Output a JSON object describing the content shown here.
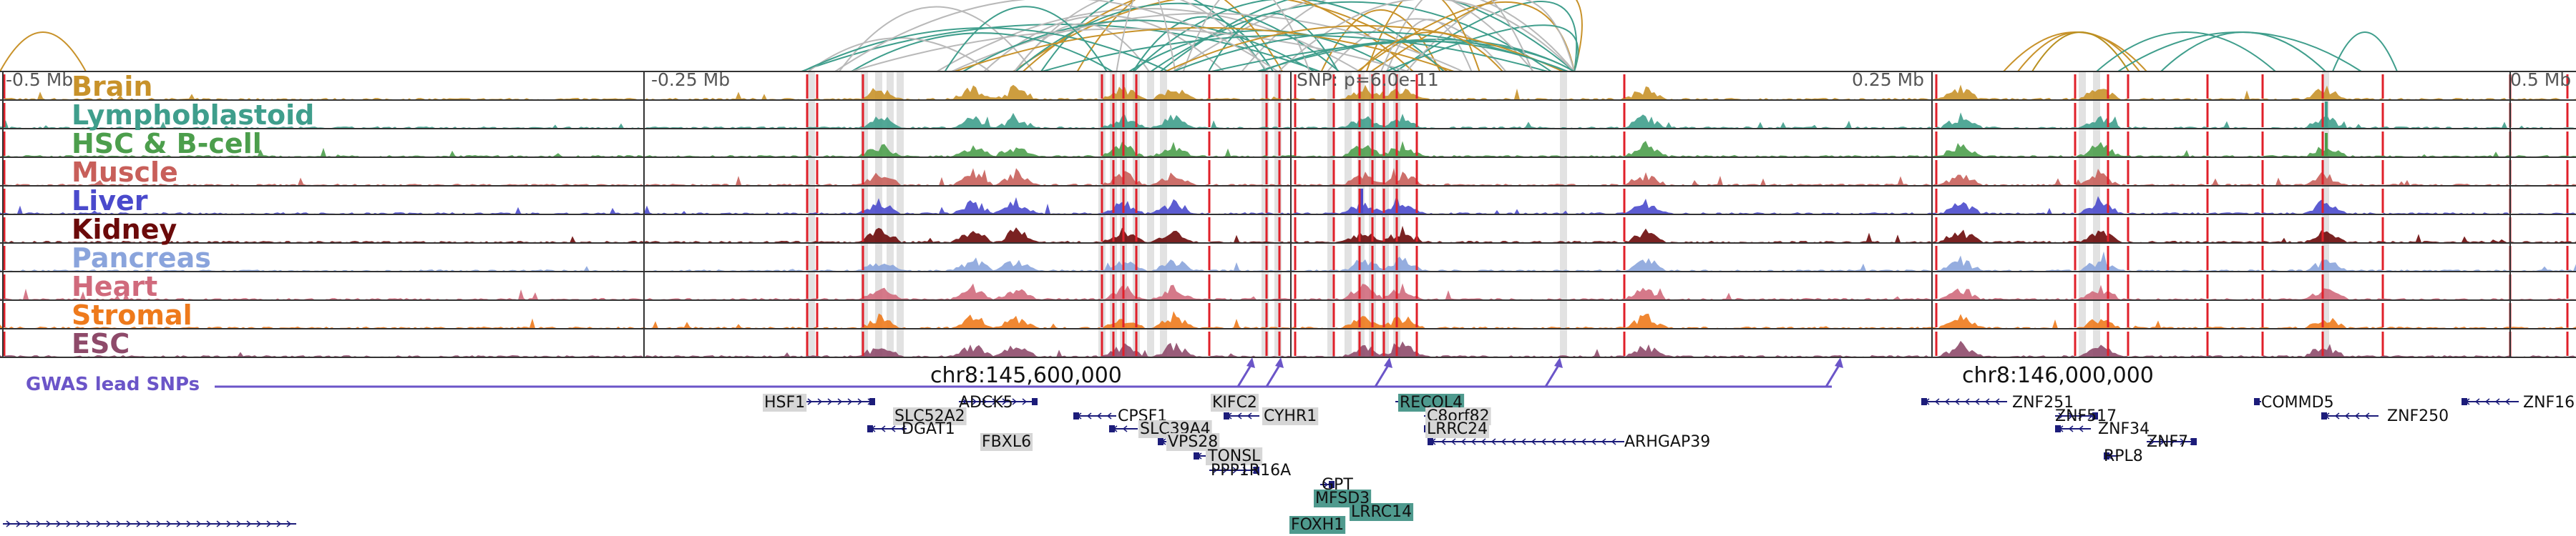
{
  "colors": {
    "highlight": "#e2e2e2",
    "eqtl_line": "#e0202a",
    "gwas": "#6b55c8",
    "gene_shape": "#1c1c7a",
    "gene_highlight_bg": "#d6d6d6",
    "gene_teal_bg": "#4f9a8e"
  },
  "axis": {
    "labels": [
      "-0.5 Mb",
      "-0.25 Mb",
      "SNP: p=6.0e-11",
      "0.25 Mb",
      "0.5 Mb"
    ]
  },
  "coordinates": [
    "chr8:145,600,000",
    "chr8:146,000,000"
  ],
  "tracks": [
    {
      "label": "Brain",
      "color": "#c8922a"
    },
    {
      "label": "Lymphoblastoid",
      "color": "#3f9e8c"
    },
    {
      "label": "HSC & B-cell",
      "color": "#4c9e4c"
    },
    {
      "label": "Muscle",
      "color": "#c85f5a"
    },
    {
      "label": "Liver",
      "color": "#4a4acc"
    },
    {
      "label": "Kidney",
      "color": "#6b0a0a"
    },
    {
      "label": "Pancreas",
      "color": "#8aa4dc"
    },
    {
      "label": "Heart",
      "color": "#d06a7c"
    },
    {
      "label": "Stromal",
      "color": "#ee7a1c"
    },
    {
      "label": "ESC",
      "color": "#8e4a6a"
    }
  ],
  "gwas_label": "GWAS lead SNPs",
  "genes": [
    {
      "name": "HSF1",
      "style": "grey"
    },
    {
      "name": "ADCK5",
      "style": "plain"
    },
    {
      "name": "SLC52A2",
      "style": "grey"
    },
    {
      "name": "DGAT1",
      "style": "plain"
    },
    {
      "name": "FBXL6",
      "style": "grey"
    },
    {
      "name": "CPSF1",
      "style": "plain"
    },
    {
      "name": "SLC39A4",
      "style": "grey"
    },
    {
      "name": "VPS28",
      "style": "grey"
    },
    {
      "name": "TONSL",
      "style": "grey"
    },
    {
      "name": "PPP1R16A",
      "style": "plain"
    },
    {
      "name": "KIFC2",
      "style": "grey"
    },
    {
      "name": "CYHR1",
      "style": "grey"
    },
    {
      "name": "GPT",
      "style": "plain"
    },
    {
      "name": "MFSD3",
      "style": "teal"
    },
    {
      "name": "LRRC14",
      "style": "teal"
    },
    {
      "name": "FOXH1",
      "style": "teal"
    },
    {
      "name": "RECQL4",
      "style": "teal"
    },
    {
      "name": "C8orf82",
      "style": "grey"
    },
    {
      "name": "LRRC24",
      "style": "grey"
    },
    {
      "name": "ARHGAP39",
      "style": "plain"
    },
    {
      "name": "ZNF251",
      "style": "plain"
    },
    {
      "name": "ZNF517",
      "style": "plain"
    },
    {
      "name": "ZNF34",
      "style": "plain"
    },
    {
      "name": "RPL8",
      "style": "plain"
    },
    {
      "name": "ZNF7",
      "style": "plain"
    },
    {
      "name": "COMMD5",
      "style": "plain"
    },
    {
      "name": "ZNF250",
      "style": "plain"
    },
    {
      "name": "ZNF16",
      "style": "plain"
    }
  ]
}
